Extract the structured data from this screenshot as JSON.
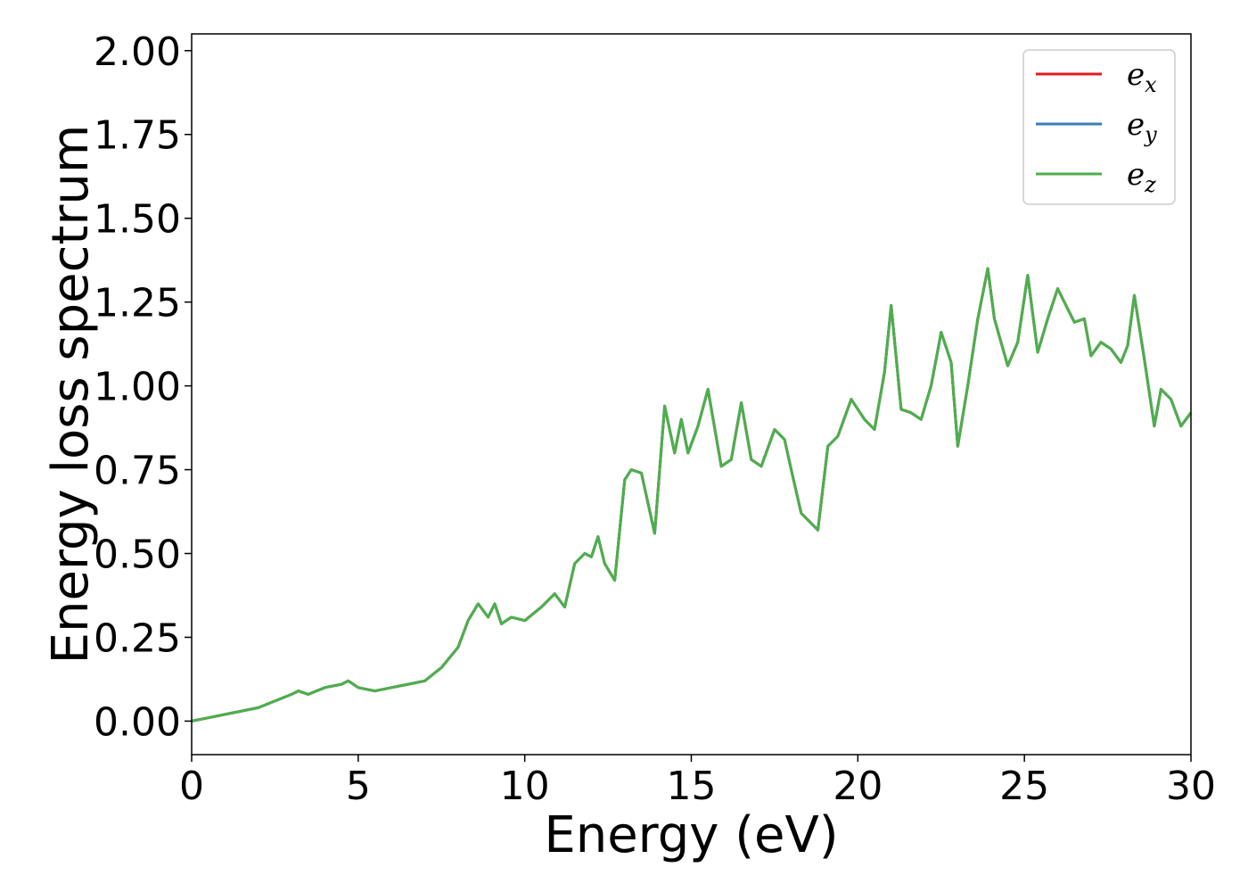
{
  "chart_data": {
    "type": "line",
    "title": "",
    "xlabel": "Energy (eV)",
    "ylabel": "Energy loss spectrum",
    "xlim": [
      0,
      30
    ],
    "ylim": [
      -0.1,
      2.05
    ],
    "xticks": [
      0,
      5,
      10,
      15,
      20,
      25,
      30
    ],
    "xtick_labels": [
      "0",
      "5",
      "10",
      "15",
      "20",
      "25",
      "30"
    ],
    "yticks": [
      0,
      0.25,
      0.5,
      0.75,
      1.0,
      1.25,
      1.5,
      1.75,
      2.0
    ],
    "ytick_labels": [
      "0.00",
      "0.25",
      "0.50",
      "0.75",
      "1.00",
      "1.25",
      "1.50",
      "1.75",
      "2.00"
    ],
    "grid": false,
    "legend_position": "top-right",
    "x": [
      0,
      0.5,
      1.0,
      1.5,
      2.0,
      2.5,
      3.0,
      3.2,
      3.5,
      4.0,
      4.5,
      4.7,
      5.0,
      5.5,
      6.0,
      6.5,
      7.0,
      7.5,
      8.0,
      8.3,
      8.6,
      8.9,
      9.1,
      9.3,
      9.6,
      10.0,
      10.5,
      10.9,
      11.2,
      11.5,
      11.8,
      12.0,
      12.2,
      12.4,
      12.7,
      13.0,
      13.2,
      13.5,
      13.9,
      14.2,
      14.5,
      14.7,
      14.9,
      15.2,
      15.5,
      15.9,
      16.2,
      16.5,
      16.8,
      17.1,
      17.5,
      17.8,
      18.0,
      18.3,
      18.5,
      18.8,
      19.1,
      19.4,
      19.8,
      20.2,
      20.5,
      20.8,
      21.0,
      21.3,
      21.6,
      21.9,
      22.2,
      22.5,
      22.8,
      23.0,
      23.3,
      23.6,
      23.9,
      24.1,
      24.5,
      24.8,
      25.1,
      25.4,
      25.7,
      26.0,
      26.2,
      26.5,
      26.8,
      27.0,
      27.3,
      27.6,
      27.9,
      28.1,
      28.3,
      28.6,
      28.9,
      29.1,
      29.4,
      29.7,
      30.0
    ],
    "series": [
      {
        "name": "e_x",
        "color": "#e41a1c",
        "values": [
          0.0,
          0.01,
          0.02,
          0.03,
          0.04,
          0.06,
          0.08,
          0.09,
          0.08,
          0.1,
          0.11,
          0.12,
          0.1,
          0.09,
          0.1,
          0.11,
          0.12,
          0.16,
          0.22,
          0.3,
          0.35,
          0.31,
          0.35,
          0.29,
          0.31,
          0.3,
          0.34,
          0.38,
          0.34,
          0.47,
          0.5,
          0.49,
          0.55,
          0.47,
          0.42,
          0.72,
          0.75,
          0.74,
          0.56,
          0.94,
          0.8,
          0.9,
          0.8,
          0.88,
          0.99,
          0.76,
          0.78,
          0.95,
          0.78,
          0.76,
          0.87,
          0.84,
          0.75,
          0.62,
          0.6,
          0.57,
          0.82,
          0.85,
          0.96,
          0.9,
          0.87,
          1.04,
          1.24,
          0.93,
          0.92,
          0.9,
          1.0,
          1.16,
          1.07,
          0.82,
          1.0,
          1.2,
          1.35,
          1.2,
          1.06,
          1.13,
          1.33,
          1.1,
          1.2,
          1.29,
          1.25,
          1.19,
          1.2,
          1.09,
          1.13,
          1.11,
          1.07,
          1.12,
          1.27,
          1.08,
          0.88,
          0.99,
          0.96,
          0.88,
          0.92
        ]
      },
      {
        "name": "e_y",
        "color": "#377eb8",
        "values": [
          0.0,
          0.01,
          0.02,
          0.03,
          0.04,
          0.06,
          0.08,
          0.09,
          0.08,
          0.1,
          0.11,
          0.12,
          0.1,
          0.09,
          0.1,
          0.11,
          0.12,
          0.16,
          0.22,
          0.3,
          0.35,
          0.31,
          0.35,
          0.29,
          0.31,
          0.3,
          0.34,
          0.38,
          0.34,
          0.47,
          0.5,
          0.49,
          0.55,
          0.47,
          0.42,
          0.72,
          0.75,
          0.74,
          0.56,
          0.94,
          0.8,
          0.9,
          0.8,
          0.88,
          0.99,
          0.76,
          0.78,
          0.95,
          0.78,
          0.76,
          0.87,
          0.84,
          0.75,
          0.62,
          0.6,
          0.57,
          0.82,
          0.85,
          0.96,
          0.9,
          0.87,
          1.04,
          1.24,
          0.93,
          0.92,
          0.9,
          1.0,
          1.16,
          1.07,
          0.82,
          1.0,
          1.2,
          1.35,
          1.2,
          1.06,
          1.13,
          1.33,
          1.1,
          1.2,
          1.29,
          1.25,
          1.19,
          1.2,
          1.09,
          1.13,
          1.11,
          1.07,
          1.12,
          1.27,
          1.08,
          0.88,
          0.99,
          0.96,
          0.88,
          0.92
        ]
      },
      {
        "name": "e_z",
        "color": "#4daf4a",
        "values": [
          0.0,
          0.01,
          0.02,
          0.03,
          0.04,
          0.06,
          0.08,
          0.09,
          0.08,
          0.1,
          0.11,
          0.12,
          0.1,
          0.09,
          0.1,
          0.11,
          0.12,
          0.16,
          0.22,
          0.3,
          0.35,
          0.31,
          0.35,
          0.29,
          0.31,
          0.3,
          0.34,
          0.38,
          0.34,
          0.47,
          0.5,
          0.49,
          0.55,
          0.47,
          0.42,
          0.72,
          0.75,
          0.74,
          0.56,
          0.94,
          0.8,
          0.9,
          0.8,
          0.88,
          0.99,
          0.76,
          0.78,
          0.95,
          0.78,
          0.76,
          0.87,
          0.84,
          0.75,
          0.62,
          0.6,
          0.57,
          0.82,
          0.85,
          0.96,
          0.9,
          0.87,
          1.04,
          1.24,
          0.93,
          0.92,
          0.9,
          1.0,
          1.16,
          1.07,
          0.82,
          1.0,
          1.2,
          1.35,
          1.2,
          1.06,
          1.13,
          1.33,
          1.1,
          1.2,
          1.29,
          1.25,
          1.19,
          1.2,
          1.09,
          1.13,
          1.11,
          1.07,
          1.12,
          1.27,
          1.08,
          0.88,
          0.99,
          0.96,
          0.88,
          0.92
        ]
      }
    ],
    "legend": [
      {
        "base": "e",
        "sub": "x",
        "color": "#e41a1c"
      },
      {
        "base": "e",
        "sub": "y",
        "color": "#377eb8"
      },
      {
        "base": "e",
        "sub": "z",
        "color": "#4daf4a"
      }
    ]
  }
}
